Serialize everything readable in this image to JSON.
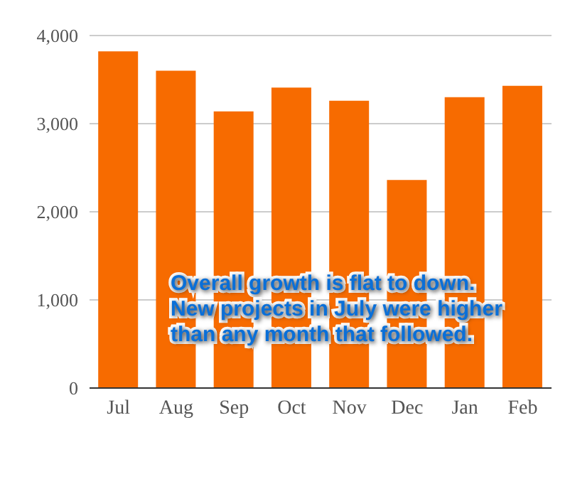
{
  "chart_data": {
    "type": "bar",
    "categories": [
      "Jul",
      "Aug",
      "Sep",
      "Oct",
      "Nov",
      "Dec",
      "Jan",
      "Feb"
    ],
    "values": [
      3820,
      3600,
      3140,
      3410,
      3260,
      2360,
      3300,
      3430
    ],
    "color": "#f76b00",
    "ylim": [
      0,
      4000
    ],
    "yticks": [
      0,
      {
        "value": 1000,
        "label": "1,000"
      },
      {
        "value": 2000,
        "label": "2,000"
      },
      {
        "value": 3000,
        "label": "3,000"
      },
      {
        "value": 4000,
        "label": "4,000"
      }
    ],
    "grid": "y",
    "annotations": [
      "Overall growth is flat to down. New projects in July were higher than any month that followed."
    ]
  }
}
